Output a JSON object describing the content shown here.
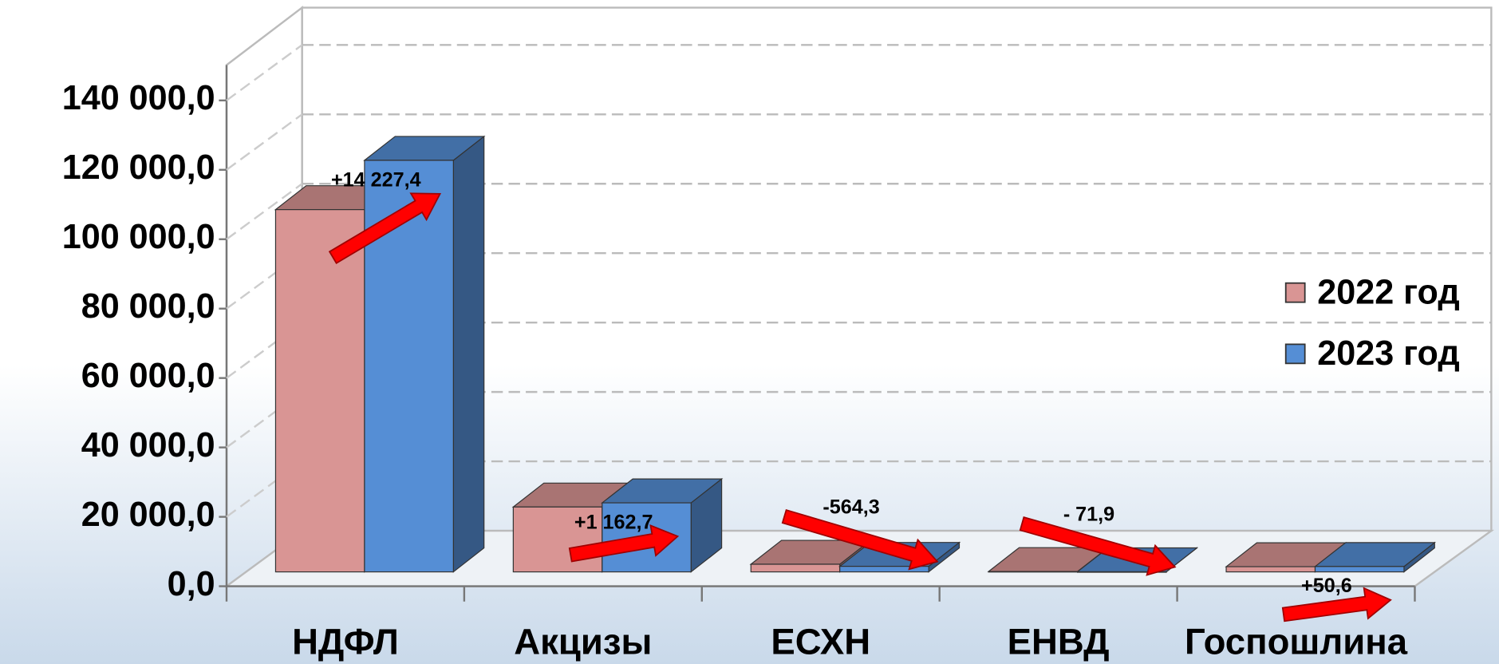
{
  "chart_data": {
    "type": "bar3d",
    "categories": [
      "НДФЛ",
      "Акцизы",
      "ЕСХН",
      "ЕНВД",
      "Госпошлина"
    ],
    "series": [
      {
        "name": "2022 год",
        "color": "#d99594",
        "values": [
          104400,
          18700,
          2200,
          100,
          1500
        ]
      },
      {
        "name": "2023 год",
        "color": "#558ed5",
        "values": [
          118600,
          19900,
          1600,
          30,
          1550
        ]
      }
    ],
    "annotations": [
      "+14 227,4",
      "+1 162,7",
      "-564,3",
      "- 71,9",
      "+50,6"
    ],
    "ylim": [
      0,
      140000
    ],
    "yticks": [
      {
        "value": 0,
        "label": "0,0"
      },
      {
        "value": 20000,
        "label": "20 000,0"
      },
      {
        "value": 40000,
        "label": "40 000,0"
      },
      {
        "value": 60000,
        "label": "60 000,0"
      },
      {
        "value": 80000,
        "label": "80 000,0"
      },
      {
        "value": 100000,
        "label": "100 000,0"
      },
      {
        "value": 120000,
        "label": "120 000,0"
      },
      {
        "value": 140000,
        "label": "140 000,0"
      }
    ],
    "grid": true,
    "legend": "right"
  }
}
